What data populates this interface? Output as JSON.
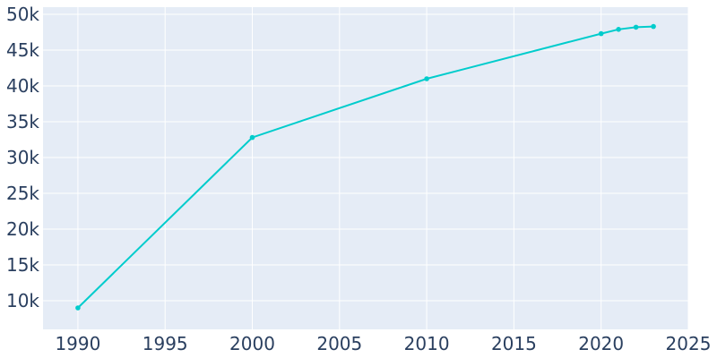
{
  "chart_data": {
    "type": "line",
    "title": "",
    "xlabel": "",
    "ylabel": "",
    "xlim": [
      1988,
      2025
    ],
    "ylim": [
      6000,
      51000
    ],
    "x_ticks": [
      1990,
      1995,
      2000,
      2005,
      2010,
      2015,
      2020,
      2025
    ],
    "x_tick_labels": [
      "1990",
      "1995",
      "2000",
      "2005",
      "2010",
      "2015",
      "2020",
      "2025"
    ],
    "y_ticks": [
      10000,
      15000,
      20000,
      25000,
      30000,
      35000,
      40000,
      45000,
      50000
    ],
    "y_tick_labels": [
      "10k",
      "15k",
      "20k",
      "25k",
      "30k",
      "35k",
      "40k",
      "45k",
      "50k"
    ],
    "grid": true,
    "legend": "none",
    "series": [
      {
        "x": [
          1990,
          2000,
          2010,
          2020,
          2021,
          2022,
          2023
        ],
        "values": [
          9000,
          32800,
          41000,
          47300,
          47900,
          48200,
          48300
        ],
        "color": "#00cccc"
      }
    ],
    "colors": {
      "plot_background": "#e5ecf6",
      "grid": "#ffffff",
      "tick_text": "#2a3f5f"
    }
  }
}
